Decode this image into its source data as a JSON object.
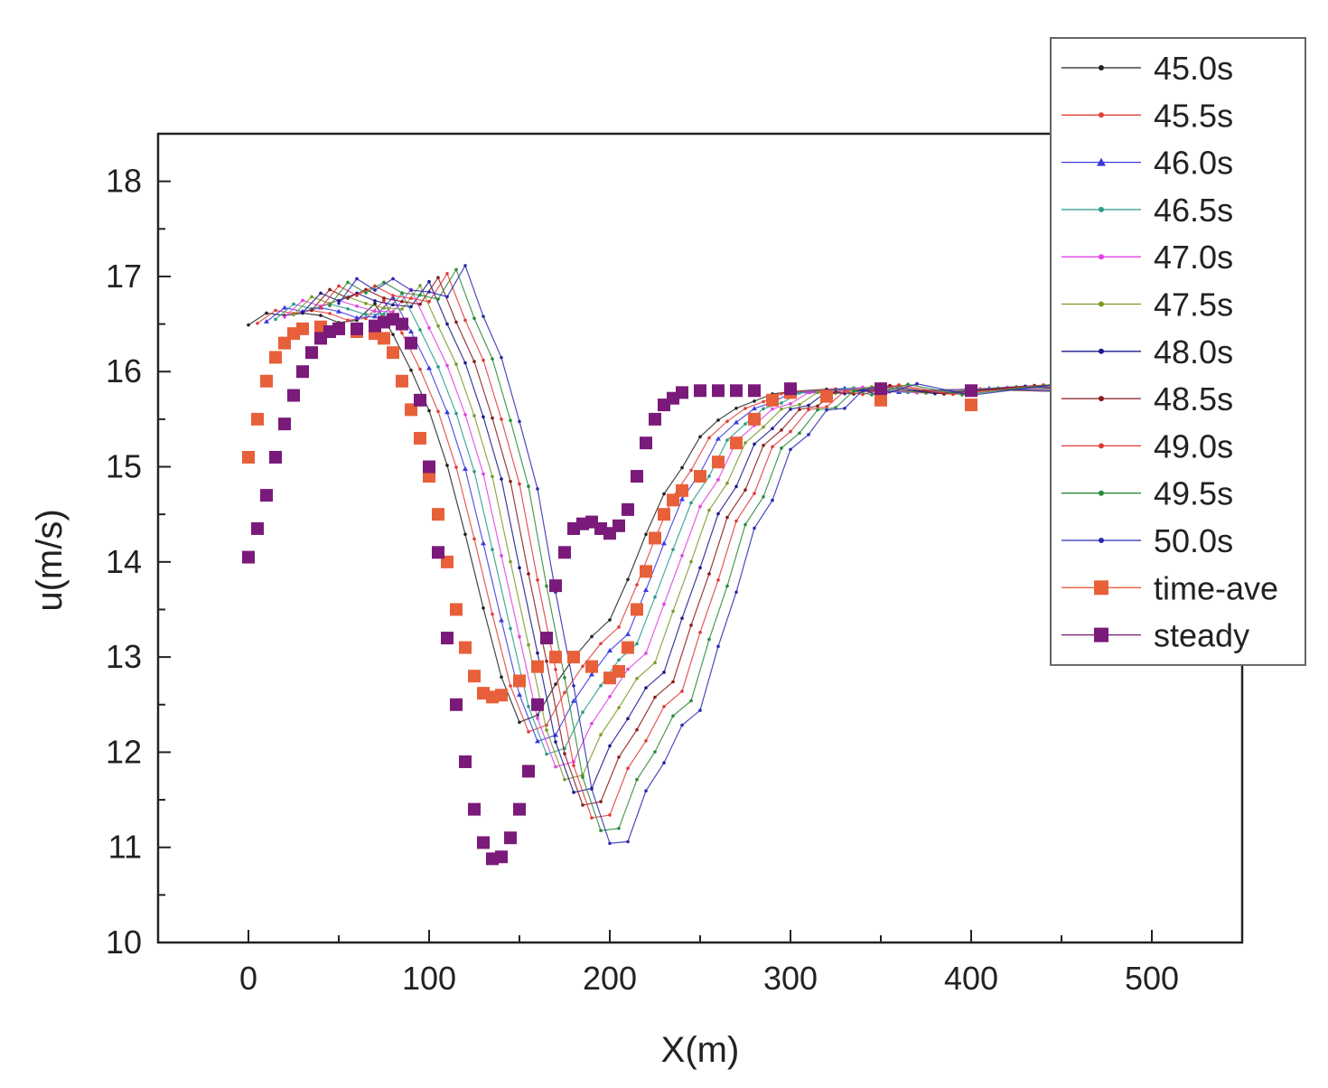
{
  "chart_data": {
    "type": "line",
    "xlabel": "X(m)",
    "ylabel": "u(m/s)",
    "xlim": [
      -50,
      550
    ],
    "ylim": [
      10,
      18.5
    ],
    "x_ticks": [
      0,
      100,
      200,
      300,
      400,
      500
    ],
    "y_ticks": [
      10,
      11,
      12,
      13,
      14,
      15,
      16,
      17,
      18
    ],
    "grid": false,
    "legend_position": "top-right",
    "series": [
      {
        "name": "45.0s",
        "color": "#222222",
        "marker": "dot",
        "shift": 0,
        "amp": 1.0
      },
      {
        "name": "45.5s",
        "color": "#e0403a",
        "marker": "dot",
        "shift": 5,
        "amp": 1.03
      },
      {
        "name": "46.0s",
        "color": "#3a3ae0",
        "marker": "triangle",
        "shift": 10,
        "amp": 1.06
      },
      {
        "name": "46.5s",
        "color": "#2a9a8a",
        "marker": "dot",
        "shift": 15,
        "amp": 1.1
      },
      {
        "name": "47.0s",
        "color": "#e040e0",
        "marker": "dot",
        "shift": 20,
        "amp": 1.14
      },
      {
        "name": "47.5s",
        "color": "#7a9a2a",
        "marker": "dot",
        "shift": 25,
        "amp": 1.18
      },
      {
        "name": "48.0s",
        "color": "#1a1a8a",
        "marker": "dot",
        "shift": 30,
        "amp": 1.22
      },
      {
        "name": "48.5s",
        "color": "#8a1a1a",
        "marker": "dot",
        "shift": 35,
        "amp": 1.26
      },
      {
        "name": "49.0s",
        "color": "#e03a3a",
        "marker": "dot",
        "shift": 40,
        "amp": 1.3
      },
      {
        "name": "49.5s",
        "color": "#2a8a3a",
        "marker": "dot",
        "shift": 45,
        "amp": 1.34
      },
      {
        "name": "50.0s",
        "color": "#2a2ab0",
        "marker": "dot",
        "shift": 50,
        "amp": 1.38
      },
      {
        "name": "time-ave",
        "color": "#e8603a",
        "marker": "square",
        "x": [
          0,
          5,
          10,
          15,
          20,
          25,
          30,
          40,
          50,
          60,
          70,
          75,
          80,
          85,
          90,
          95,
          100,
          105,
          110,
          115,
          120,
          125,
          130,
          135,
          140,
          150,
          160,
          170,
          180,
          190,
          200,
          205,
          210,
          215,
          220,
          225,
          230,
          235,
          240,
          250,
          260,
          270,
          280,
          290,
          300,
          320,
          350,
          400,
          450
        ],
        "values": [
          15.1,
          15.5,
          15.9,
          16.15,
          16.3,
          16.4,
          16.45,
          16.47,
          16.45,
          16.42,
          16.4,
          16.35,
          16.2,
          15.9,
          15.6,
          15.3,
          14.9,
          14.5,
          14.0,
          13.5,
          13.1,
          12.8,
          12.62,
          12.58,
          12.6,
          12.75,
          12.9,
          13.0,
          13.0,
          12.9,
          12.78,
          12.85,
          13.1,
          13.5,
          13.9,
          14.25,
          14.5,
          14.65,
          14.75,
          14.9,
          15.05,
          15.25,
          15.5,
          15.7,
          15.78,
          15.74,
          15.7,
          15.65,
          15.62
        ]
      },
      {
        "name": "steady",
        "color": "#7a1a7a",
        "marker": "square",
        "x": [
          0,
          5,
          10,
          15,
          20,
          25,
          30,
          35,
          40,
          45,
          50,
          60,
          70,
          75,
          80,
          85,
          90,
          95,
          100,
          105,
          110,
          115,
          120,
          125,
          130,
          135,
          140,
          145,
          150,
          155,
          160,
          165,
          170,
          175,
          180,
          185,
          190,
          195,
          200,
          205,
          210,
          215,
          220,
          225,
          230,
          235,
          240,
          250,
          260,
          270,
          280,
          300,
          350,
          400,
          450
        ],
        "values": [
          14.05,
          14.35,
          14.7,
          15.1,
          15.45,
          15.75,
          16.0,
          16.2,
          16.35,
          16.42,
          16.45,
          16.45,
          16.48,
          16.52,
          16.55,
          16.5,
          16.3,
          15.7,
          15.0,
          14.1,
          13.2,
          12.5,
          11.9,
          11.4,
          11.05,
          10.88,
          10.9,
          11.1,
          11.4,
          11.8,
          12.5,
          13.2,
          13.75,
          14.1,
          14.35,
          14.4,
          14.42,
          14.35,
          14.3,
          14.38,
          14.55,
          14.9,
          15.25,
          15.5,
          15.65,
          15.72,
          15.78,
          15.8,
          15.8,
          15.8,
          15.8,
          15.82,
          15.82,
          15.8,
          15.78
        ]
      }
    ],
    "transient_base": {
      "x": [
        0,
        10,
        20,
        30,
        40,
        50,
        60,
        70,
        80,
        90,
        100,
        110,
        120,
        130,
        140,
        150,
        160,
        170,
        180,
        190,
        200,
        210,
        220,
        230,
        240,
        250,
        260,
        270,
        280,
        290,
        300,
        320,
        350,
        400,
        450
      ],
      "values": [
        16.5,
        16.6,
        16.6,
        16.6,
        16.6,
        16.5,
        16.55,
        16.7,
        16.4,
        16.0,
        15.6,
        15.0,
        14.3,
        13.5,
        12.8,
        12.3,
        12.4,
        12.7,
        13.0,
        13.2,
        13.4,
        13.8,
        14.3,
        14.7,
        15.0,
        15.3,
        15.5,
        15.6,
        15.7,
        15.75,
        15.8,
        15.8,
        15.8,
        15.8,
        15.8
      ]
    }
  }
}
